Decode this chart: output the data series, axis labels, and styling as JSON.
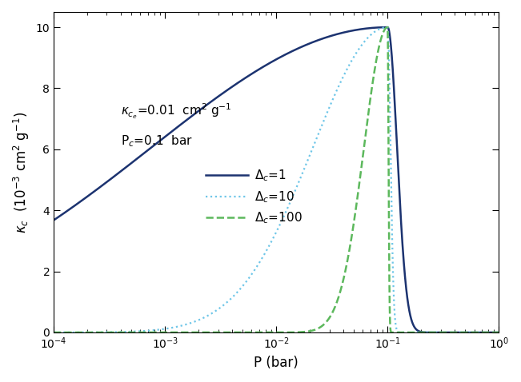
{
  "kappa_ce": 0.01,
  "Pc": 0.1,
  "delta_c_values": [
    1,
    10,
    100
  ],
  "P_min": 0.0001,
  "P_max": 1.0,
  "n_points": 10000,
  "ylim": [
    0,
    10.5
  ],
  "ylabel": "$\\kappa_c$  ($10^{-3}$ cm$^2$ g$^{-1}$)",
  "xlabel": "P (bar)",
  "colors": [
    "#1c3370",
    "#6ec6e8",
    "#5cb85c"
  ],
  "linestyles": [
    "solid",
    "dotted",
    "dashed"
  ],
  "linewidths": [
    1.8,
    1.6,
    1.8
  ],
  "annotation_kappa": "$\\kappa_{c_e}$=0.01  cm$^2$ g$^{-1}$",
  "annotation_Pc": "P$_c$=0.1  bar",
  "legend_labels": [
    "$\\Delta_c$=1",
    "$\\Delta_c$=10",
    "$\\Delta_c$=100"
  ],
  "scale_factor": 1000,
  "figsize": [
    6.51,
    4.78
  ],
  "dpi": 100
}
